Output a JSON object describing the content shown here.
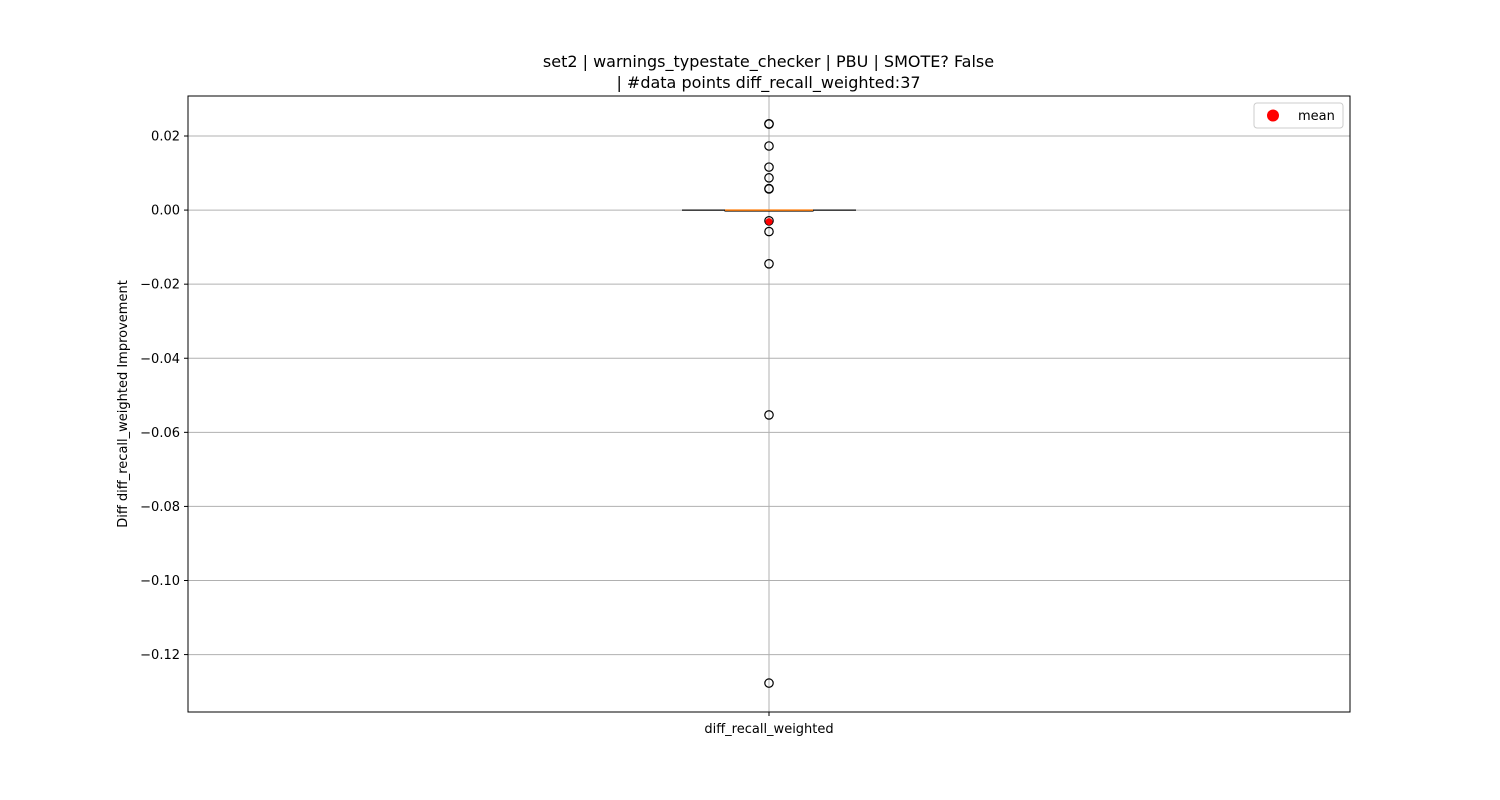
{
  "chart_data": {
    "type": "box",
    "title_line1": "set2 | warnings_typestate_checker | PBU | SMOTE? False",
    "title_line2": "| #data points diff_recall_weighted:37",
    "ylabel": "Diff diff_recall_weighted Improvement",
    "xlabel": "",
    "categories": [
      "diff_recall_weighted"
    ],
    "ylim": [
      -0.1355,
      0.0308
    ],
    "yticks": [
      0.02,
      0.0,
      -0.02,
      -0.04,
      -0.06,
      -0.08,
      -0.1,
      -0.12
    ],
    "ytick_labels": [
      "0.02",
      "0.00",
      "−0.02",
      "−0.04",
      "−0.06",
      "−0.08",
      "−0.10",
      "−0.12"
    ],
    "grid": true,
    "box": {
      "q1": 0.0,
      "median": 0.0,
      "q3": 0.0,
      "whisker_low": 0.0,
      "whisker_high": 0.0
    },
    "outliers": [
      0.0233,
      0.0232,
      0.0173,
      0.0116,
      0.0087,
      0.0058,
      0.0057,
      -0.0029,
      -0.0058,
      -0.0145,
      -0.0553,
      -0.1277
    ],
    "mean": -0.0031,
    "legend": {
      "label": "mean",
      "placement": "top-right"
    },
    "colors": {
      "median": "#ff7f0e",
      "mean": "#ff0000",
      "outlier": "#000000",
      "grid": "#b0b0b0"
    }
  }
}
